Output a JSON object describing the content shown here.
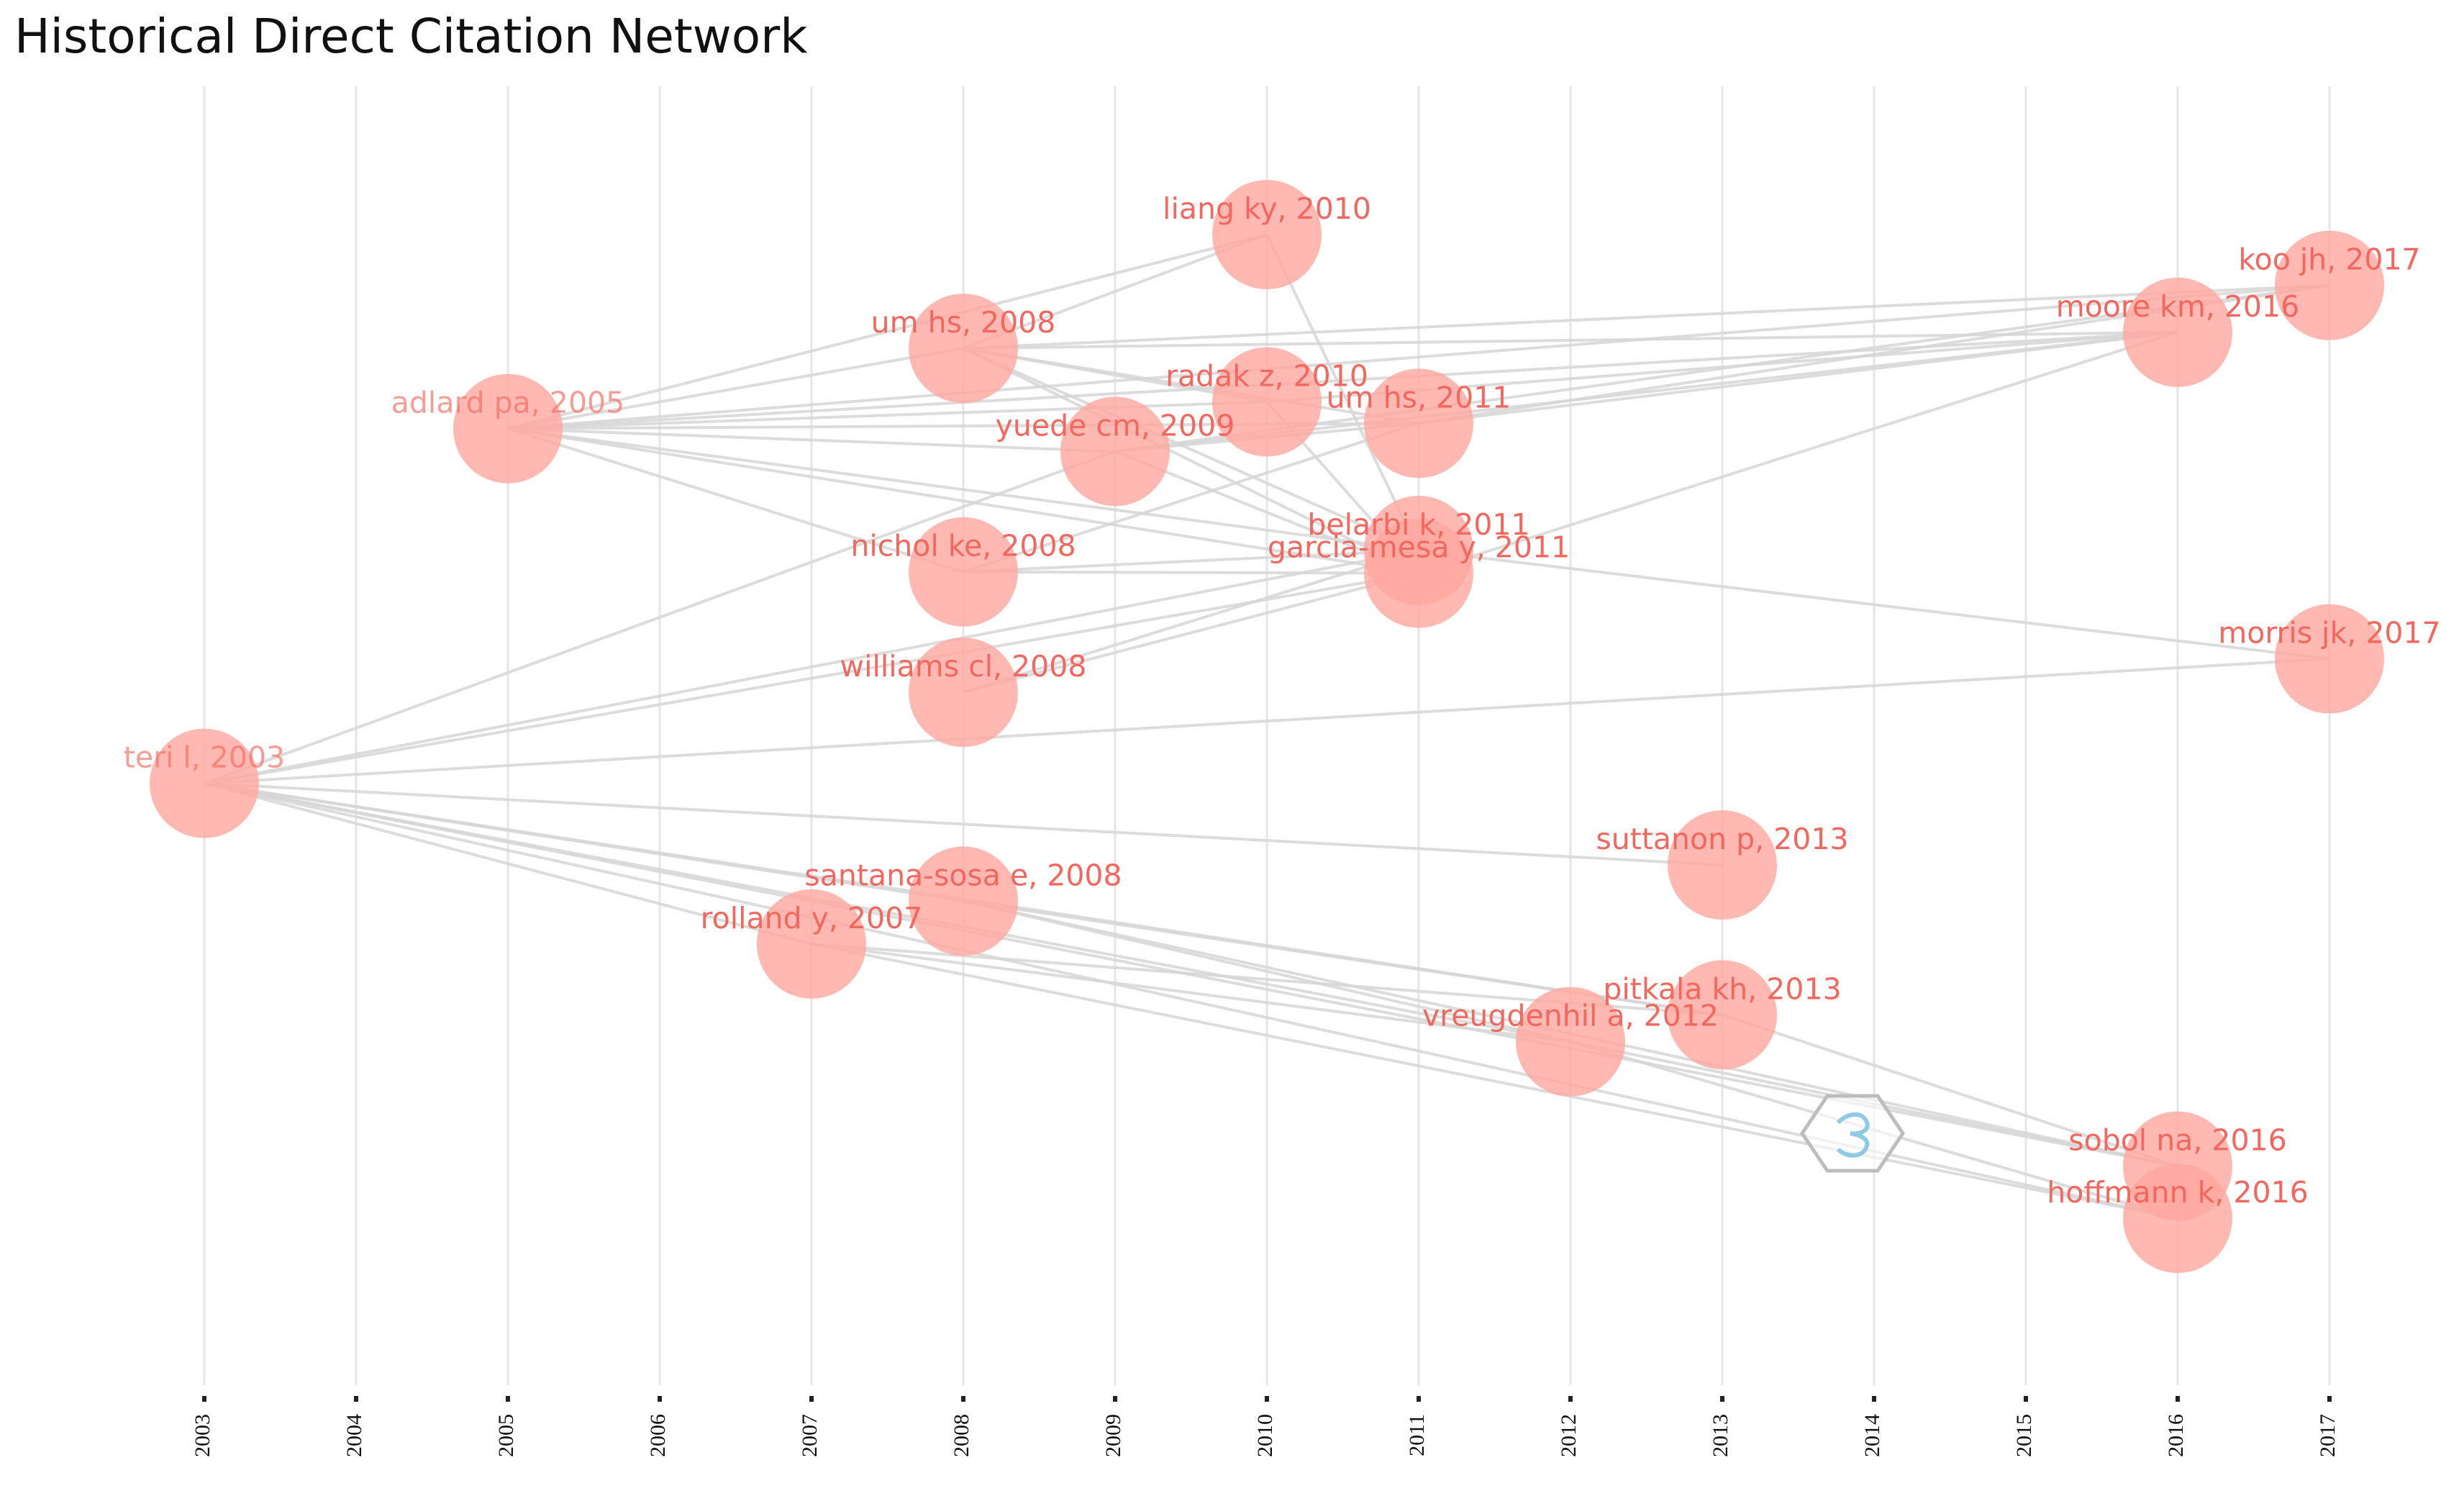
{
  "chart_data": {
    "type": "network",
    "title": "Historical Direct Citation Network",
    "xlabel": "",
    "ylabel": "",
    "x_ticks": [
      2003,
      2004,
      2005,
      2006,
      2007,
      2008,
      2009,
      2010,
      2011,
      2012,
      2013,
      2014,
      2015,
      2016,
      2017
    ],
    "grid": true,
    "colors": {
      "node": "#ffa79f",
      "label": "#f4675e",
      "edge": "#d6d6d6",
      "grid": "#e6e6e6"
    },
    "nodes": [
      {
        "id": "teri",
        "label": "teri l, 2003",
        "year": 2003,
        "y": 0.51,
        "faded": true
      },
      {
        "id": "adlard",
        "label": "adlard pa, 2005",
        "year": 2005,
        "y": 0.245,
        "faded": true
      },
      {
        "id": "rolland",
        "label": "rolland y, 2007",
        "year": 2007,
        "y": 0.63,
        "faded": false
      },
      {
        "id": "umhs2008",
        "label": "um hs, 2008",
        "year": 2008,
        "y": 0.185,
        "faded": false
      },
      {
        "id": "nichol",
        "label": "nichol ke, 2008",
        "year": 2008,
        "y": 0.352,
        "faded": false
      },
      {
        "id": "williams",
        "label": "williams cl, 2008",
        "year": 2008,
        "y": 0.442,
        "faded": false
      },
      {
        "id": "santana",
        "label": "santana-sosa e, 2008",
        "year": 2008,
        "y": 0.598,
        "faded": false
      },
      {
        "id": "yuede",
        "label": "yuede cm, 2009",
        "year": 2009,
        "y": 0.262,
        "faded": false
      },
      {
        "id": "liang",
        "label": "liang ky, 2010",
        "year": 2010,
        "y": 0.1,
        "faded": false
      },
      {
        "id": "radak",
        "label": "radak z, 2010",
        "year": 2010,
        "y": 0.225,
        "faded": false
      },
      {
        "id": "umhs2011",
        "label": "um hs, 2011",
        "year": 2011,
        "y": 0.241,
        "faded": false
      },
      {
        "id": "belarbi",
        "label": "belarbi k, 2011",
        "year": 2011,
        "y": 0.336,
        "faded": false
      },
      {
        "id": "garcia",
        "label": "garcia-mesa y, 2011",
        "year": 2011,
        "y": 0.353,
        "faded": false
      },
      {
        "id": "vreugdenhil",
        "label": "vreugdenhil a, 2012",
        "year": 2012,
        "y": 0.703,
        "faded": false
      },
      {
        "id": "suttanon",
        "label": "suttanon p, 2013",
        "year": 2013,
        "y": 0.571,
        "faded": false
      },
      {
        "id": "pitkala",
        "label": "pitkala kh, 2013",
        "year": 2013,
        "y": 0.683,
        "faded": false
      },
      {
        "id": "moore",
        "label": "moore km, 2016",
        "year": 2016,
        "y": 0.173,
        "faded": false
      },
      {
        "id": "sobol",
        "label": "sobol na, 2016",
        "year": 2016,
        "y": 0.796,
        "faded": false
      },
      {
        "id": "hoffmann",
        "label": "hoffmann k, 2016",
        "year": 2016,
        "y": 0.835,
        "faded": false
      },
      {
        "id": "koo",
        "label": "koo jh, 2017",
        "year": 2017,
        "y": 0.138,
        "faded": false
      },
      {
        "id": "morris",
        "label": "morris jk, 2017",
        "year": 2017,
        "y": 0.417,
        "faded": false
      }
    ],
    "edges": [
      [
        "teri",
        "santana"
      ],
      [
        "teri",
        "rolland"
      ],
      [
        "teri",
        "vreugdenhil"
      ],
      [
        "teri",
        "pitkala"
      ],
      [
        "teri",
        "suttanon"
      ],
      [
        "teri",
        "sobol"
      ],
      [
        "teri",
        "hoffmann"
      ],
      [
        "teri",
        "morris"
      ],
      [
        "teri",
        "garcia"
      ],
      [
        "teri",
        "belarbi"
      ],
      [
        "teri",
        "yuede"
      ],
      [
        "adlard",
        "umhs2008"
      ],
      [
        "adlard",
        "liang"
      ],
      [
        "adlard",
        "radak"
      ],
      [
        "adlard",
        "umhs2011"
      ],
      [
        "adlard",
        "belarbi"
      ],
      [
        "adlard",
        "garcia"
      ],
      [
        "adlard",
        "moore"
      ],
      [
        "adlard",
        "koo"
      ],
      [
        "adlard",
        "nichol"
      ],
      [
        "adlard",
        "yuede"
      ],
      [
        "umhs2008",
        "liang"
      ],
      [
        "umhs2008",
        "radak"
      ],
      [
        "umhs2008",
        "umhs2011"
      ],
      [
        "umhs2008",
        "moore"
      ],
      [
        "umhs2008",
        "koo"
      ],
      [
        "umhs2008",
        "belarbi"
      ],
      [
        "umhs2008",
        "garcia"
      ],
      [
        "nichol",
        "garcia"
      ],
      [
        "nichol",
        "belarbi"
      ],
      [
        "nichol",
        "umhs2011"
      ],
      [
        "williams",
        "garcia"
      ],
      [
        "williams",
        "belarbi"
      ],
      [
        "yuede",
        "umhs2011"
      ],
      [
        "yuede",
        "garcia"
      ],
      [
        "yuede",
        "moore"
      ],
      [
        "yuede",
        "koo"
      ],
      [
        "liang",
        "belarbi"
      ],
      [
        "radak",
        "garcia"
      ],
      [
        "radak",
        "moore"
      ],
      [
        "umhs2011",
        "moore"
      ],
      [
        "umhs2011",
        "koo"
      ],
      [
        "belarbi",
        "morris"
      ],
      [
        "garcia",
        "moore"
      ],
      [
        "santana",
        "vreugdenhil"
      ],
      [
        "santana",
        "pitkala"
      ],
      [
        "santana",
        "sobol"
      ],
      [
        "rolland",
        "vreugdenhil"
      ],
      [
        "rolland",
        "pitkala"
      ],
      [
        "rolland",
        "hoffmann"
      ],
      [
        "vreugdenhil",
        "sobol"
      ],
      [
        "vreugdenhil",
        "hoffmann"
      ],
      [
        "pitkala",
        "sobol"
      ]
    ]
  }
}
